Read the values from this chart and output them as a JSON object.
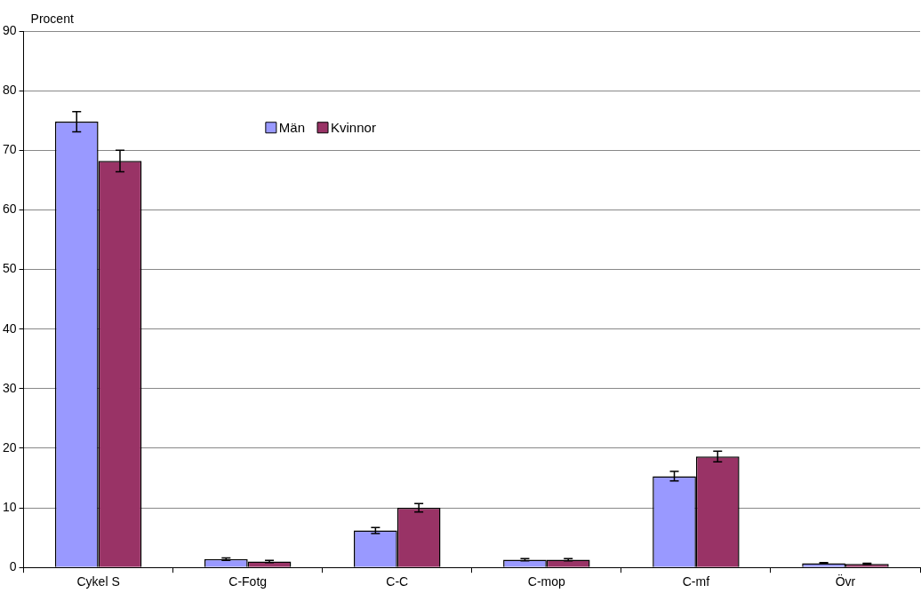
{
  "chart_data": {
    "type": "bar",
    "ylabel": "Procent",
    "categories": [
      "Cykel S",
      "C-Fotg",
      "C-C",
      "C-mop",
      "C-mf",
      "Övr"
    ],
    "series": [
      {
        "name": "Män",
        "color": "#9999ff",
        "values": [
          74.8,
          1.4,
          6.2,
          1.3,
          15.3,
          0.7
        ],
        "errors": [
          1.7,
          0.2,
          0.5,
          0.2,
          0.8,
          0.1
        ]
      },
      {
        "name": "Kvinnor",
        "color": "#993366",
        "values": [
          68.2,
          1.0,
          10.0,
          1.3,
          18.6,
          0.6
        ],
        "errors": [
          1.8,
          0.2,
          0.7,
          0.2,
          0.9,
          0.1
        ]
      }
    ],
    "ylim": [
      0,
      90
    ],
    "yticks": [
      0,
      10,
      20,
      30,
      40,
      50,
      60,
      70,
      80,
      90
    ],
    "grid": "y",
    "legend": "top"
  }
}
